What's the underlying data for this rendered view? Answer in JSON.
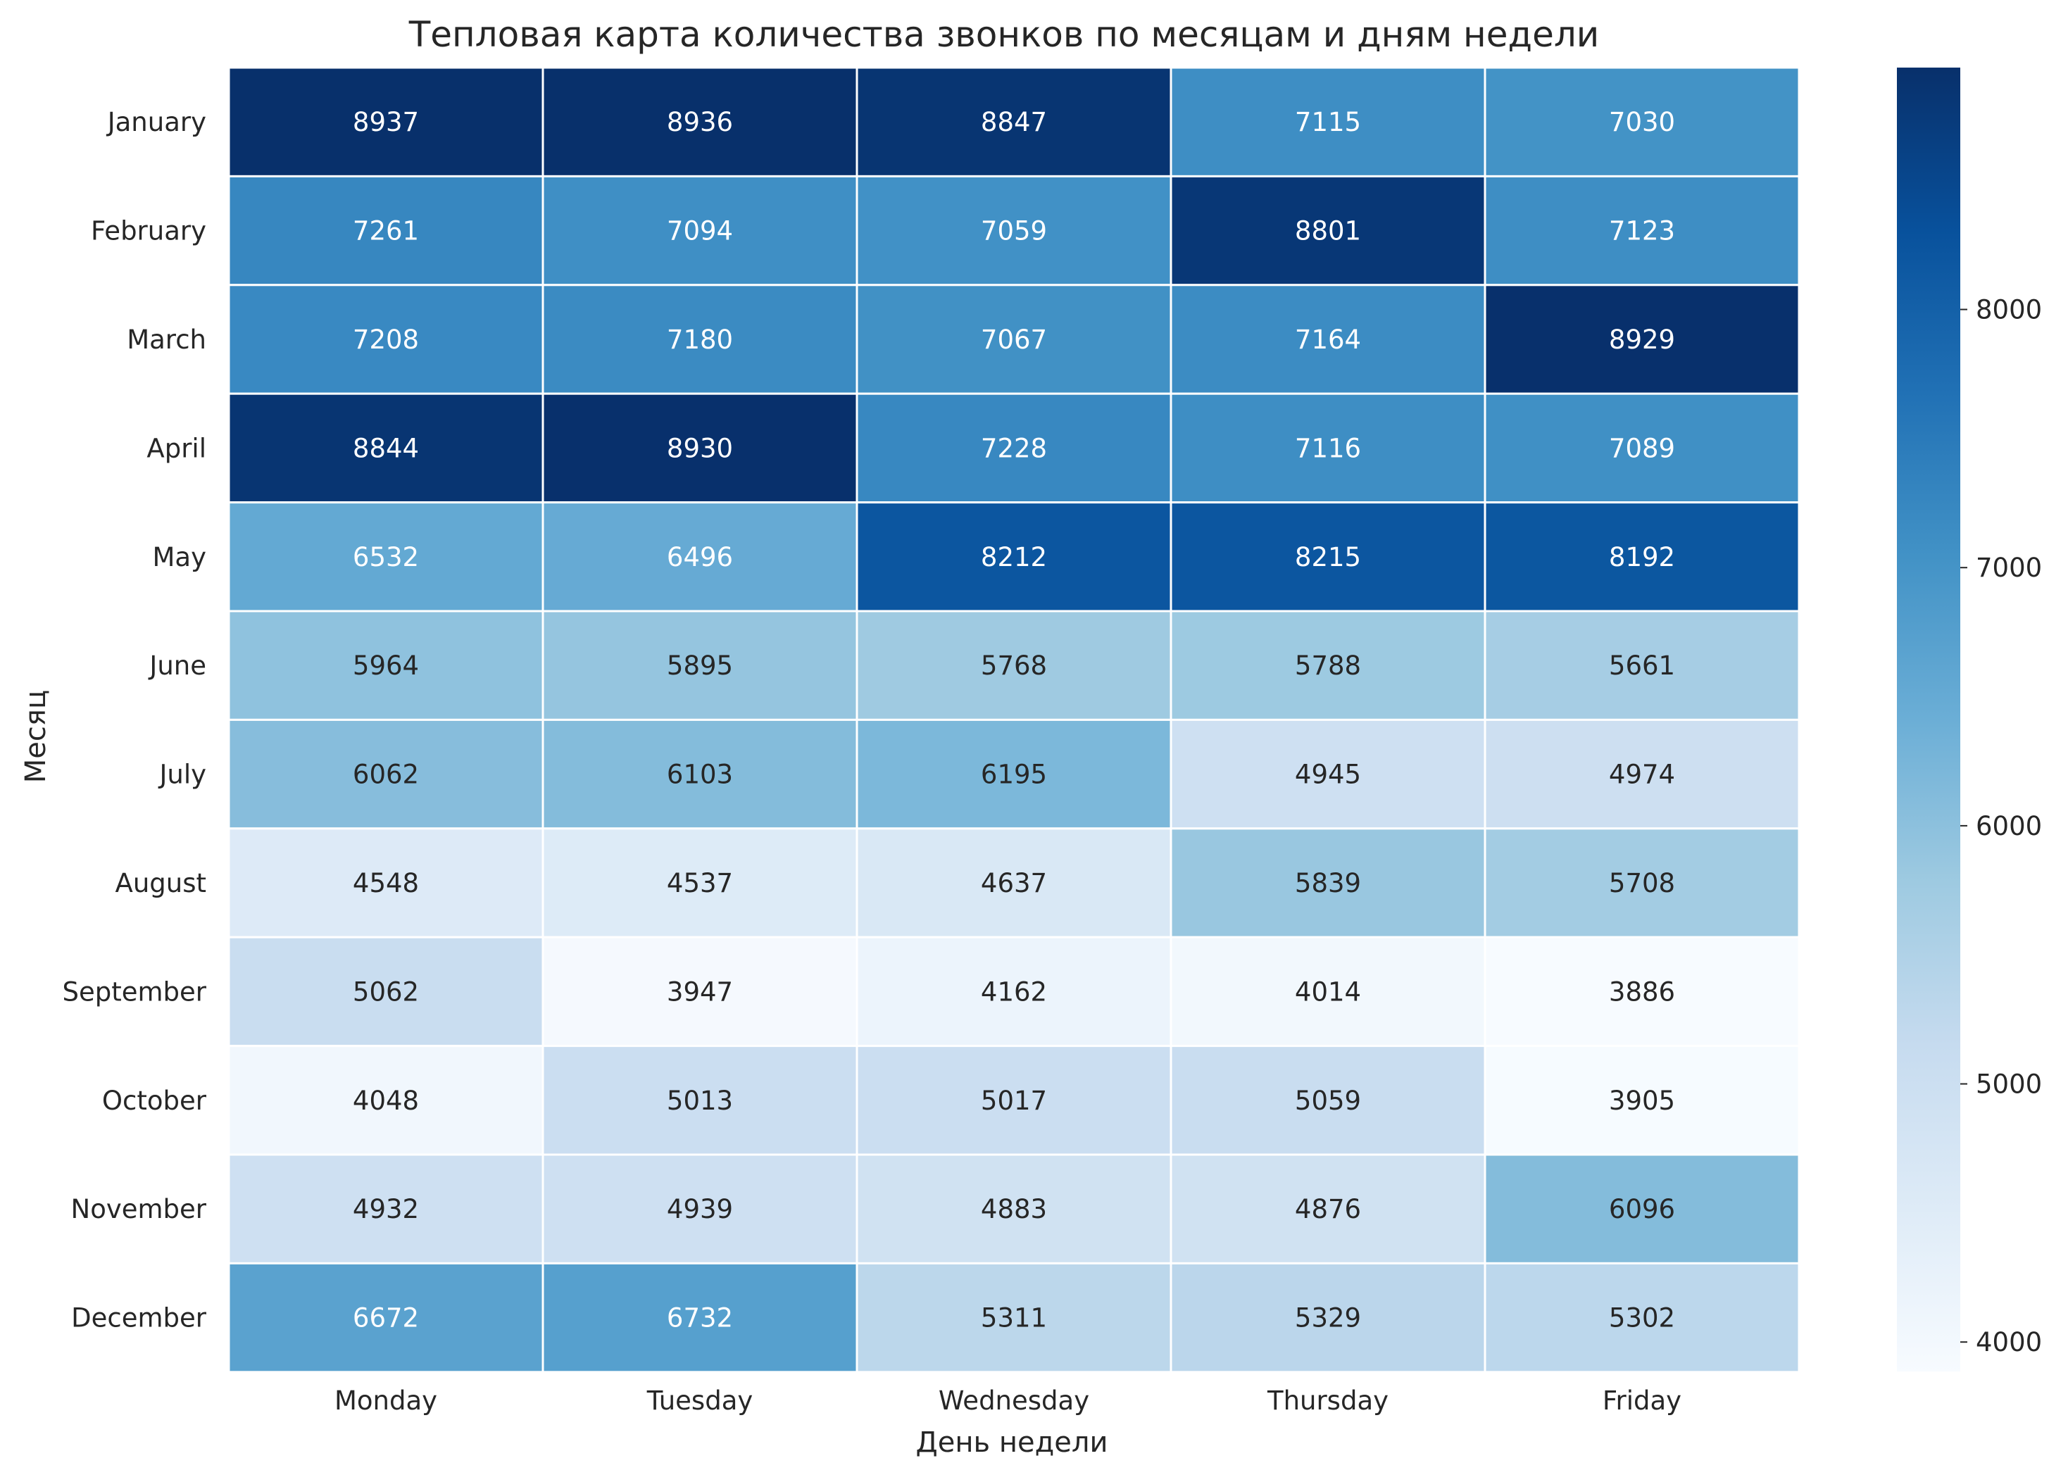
{
  "chart_data": {
    "type": "heatmap",
    "title": "Тепловая карта количества звонков по месяцам и дням недели",
    "xlabel": "День недели",
    "ylabel": "Месяц",
    "x_categories": [
      "Monday",
      "Tuesday",
      "Wednesday",
      "Thursday",
      "Friday"
    ],
    "y_categories": [
      "January",
      "February",
      "March",
      "April",
      "May",
      "June",
      "July",
      "August",
      "September",
      "October",
      "November",
      "December"
    ],
    "values": [
      [
        8937,
        8936,
        8847,
        7115,
        7030
      ],
      [
        7261,
        7094,
        7059,
        8801,
        7123
      ],
      [
        7208,
        7180,
        7067,
        7164,
        8929
      ],
      [
        8844,
        8930,
        7228,
        7116,
        7089
      ],
      [
        6532,
        6496,
        8212,
        8215,
        8192
      ],
      [
        5964,
        5895,
        5768,
        5788,
        5661
      ],
      [
        6062,
        6103,
        6195,
        4945,
        4974
      ],
      [
        4548,
        4537,
        4637,
        5839,
        5708
      ],
      [
        5062,
        3947,
        4162,
        4014,
        3886
      ],
      [
        4048,
        5013,
        5017,
        5059,
        3905
      ],
      [
        4932,
        4939,
        4883,
        4876,
        6096
      ],
      [
        6672,
        6732,
        5311,
        5329,
        5302
      ]
    ],
    "colorbar": {
      "colormap": "Blues",
      "vmin": 3886,
      "vmax": 8937,
      "ticks": [
        "4000",
        "5000",
        "6000",
        "7000",
        "8000"
      ]
    },
    "grid": false,
    "cell_border_color": "#ffffff",
    "colors": {
      "text_dark": "#262626",
      "text_light": "#ffffff",
      "label": "#262626",
      "low": "#f7fbff",
      "high": "#08306b"
    }
  }
}
